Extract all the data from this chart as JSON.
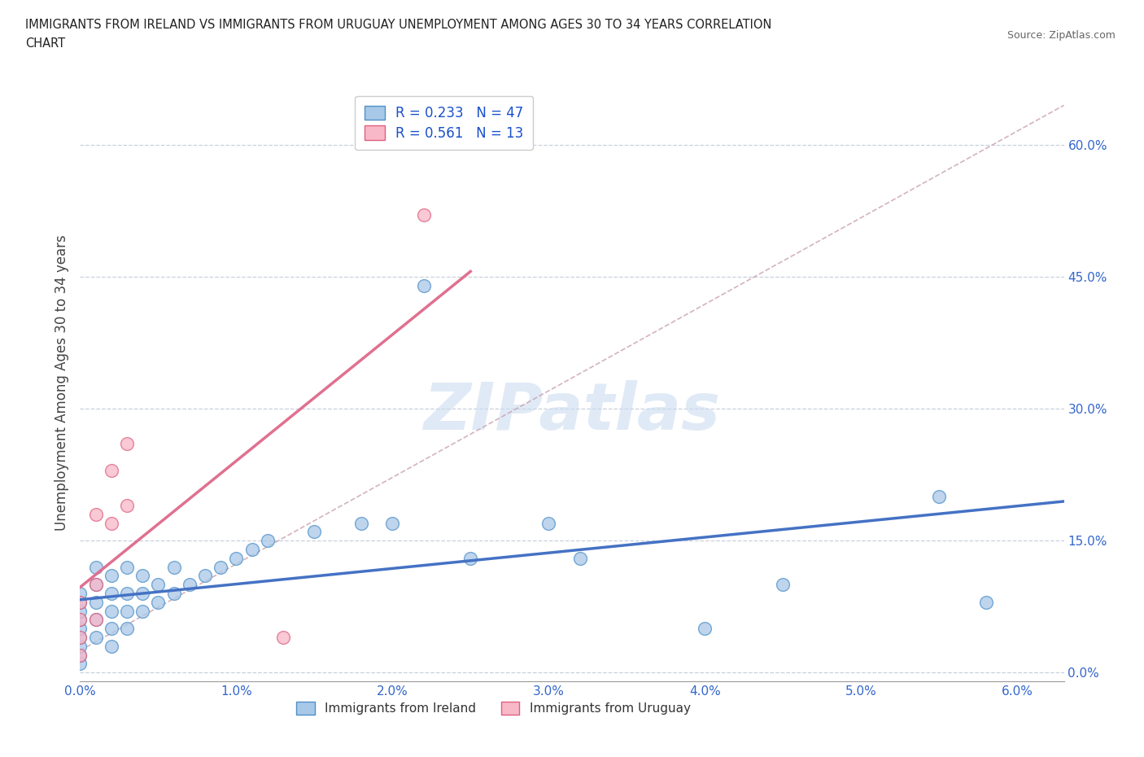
{
  "title_line1": "IMMIGRANTS FROM IRELAND VS IMMIGRANTS FROM URUGUAY UNEMPLOYMENT AMONG AGES 30 TO 34 YEARS CORRELATION",
  "title_line2": "CHART",
  "source": "Source: ZipAtlas.com",
  "ylabel": "Unemployment Among Ages 30 to 34 years",
  "xlim": [
    0.0,
    0.063
  ],
  "ylim": [
    -0.01,
    0.67
  ],
  "xticks": [
    0.0,
    0.01,
    0.02,
    0.03,
    0.04,
    0.05,
    0.06
  ],
  "xticklabels": [
    "0.0%",
    "1.0%",
    "2.0%",
    "3.0%",
    "4.0%",
    "5.0%",
    "6.0%"
  ],
  "yticks": [
    0.0,
    0.15,
    0.3,
    0.45,
    0.6
  ],
  "yticklabels": [
    "0.0%",
    "15.0%",
    "30.0%",
    "45.0%",
    "60.0%"
  ],
  "grid_color": "#c8d0dc",
  "watermark": "ZIPatlas",
  "ireland_color": "#a8c8e8",
  "ireland_edge": "#5090c8",
  "uruguay_color": "#f8b8c8",
  "uruguay_edge": "#e06080",
  "ireland_R": 0.233,
  "ireland_N": 47,
  "uruguay_R": 0.561,
  "uruguay_N": 13,
  "ireland_line_color": "#4472c4",
  "uruguay_line_color": "#e07090",
  "dash_line_color": "#c8a0b0",
  "ireland_x": [
    0.0,
    0.0,
    0.0,
    0.0,
    0.0,
    0.0,
    0.0,
    0.0,
    0.0,
    0.001,
    0.001,
    0.001,
    0.001,
    0.001,
    0.002,
    0.002,
    0.002,
    0.002,
    0.002,
    0.003,
    0.003,
    0.003,
    0.003,
    0.004,
    0.004,
    0.004,
    0.005,
    0.005,
    0.006,
    0.006,
    0.007,
    0.008,
    0.009,
    0.01,
    0.011,
    0.012,
    0.015,
    0.018,
    0.02,
    0.022,
    0.025,
    0.03,
    0.032,
    0.04,
    0.045,
    0.055,
    0.058
  ],
  "ireland_y": [
    0.01,
    0.02,
    0.03,
    0.04,
    0.05,
    0.06,
    0.07,
    0.08,
    0.09,
    0.04,
    0.06,
    0.08,
    0.1,
    0.12,
    0.03,
    0.05,
    0.07,
    0.09,
    0.11,
    0.05,
    0.07,
    0.09,
    0.12,
    0.07,
    0.09,
    0.11,
    0.08,
    0.1,
    0.09,
    0.12,
    0.1,
    0.11,
    0.12,
    0.13,
    0.14,
    0.15,
    0.16,
    0.17,
    0.17,
    0.44,
    0.13,
    0.17,
    0.13,
    0.05,
    0.1,
    0.2,
    0.08
  ],
  "uruguay_x": [
    0.0,
    0.0,
    0.0,
    0.0,
    0.001,
    0.001,
    0.001,
    0.002,
    0.002,
    0.003,
    0.003,
    0.013,
    0.022
  ],
  "uruguay_y": [
    0.02,
    0.04,
    0.06,
    0.08,
    0.06,
    0.1,
    0.18,
    0.17,
    0.23,
    0.19,
    0.26,
    0.04,
    0.52
  ],
  "bg_color": "#ffffff"
}
